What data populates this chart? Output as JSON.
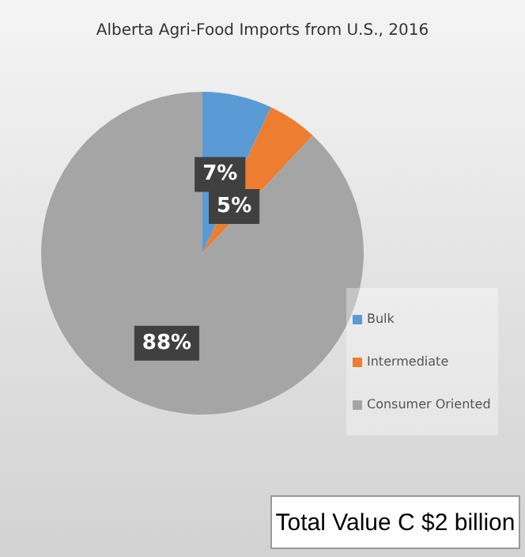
{
  "chart_data": {
    "type": "pie",
    "title": "Alberta Agri-Food Imports from U.S., 2016",
    "categories": [
      "Bulk",
      "Intermediate",
      "Consumer Oriented"
    ],
    "values": [
      7,
      5,
      88
    ],
    "colors": [
      "#5b9bd5",
      "#ed7d31",
      "#a5a5a5"
    ],
    "value_labels": [
      "7%",
      "5%",
      "88%"
    ],
    "legend": "bottom right",
    "annotations": [
      "Total Value C $2 billion"
    ]
  }
}
